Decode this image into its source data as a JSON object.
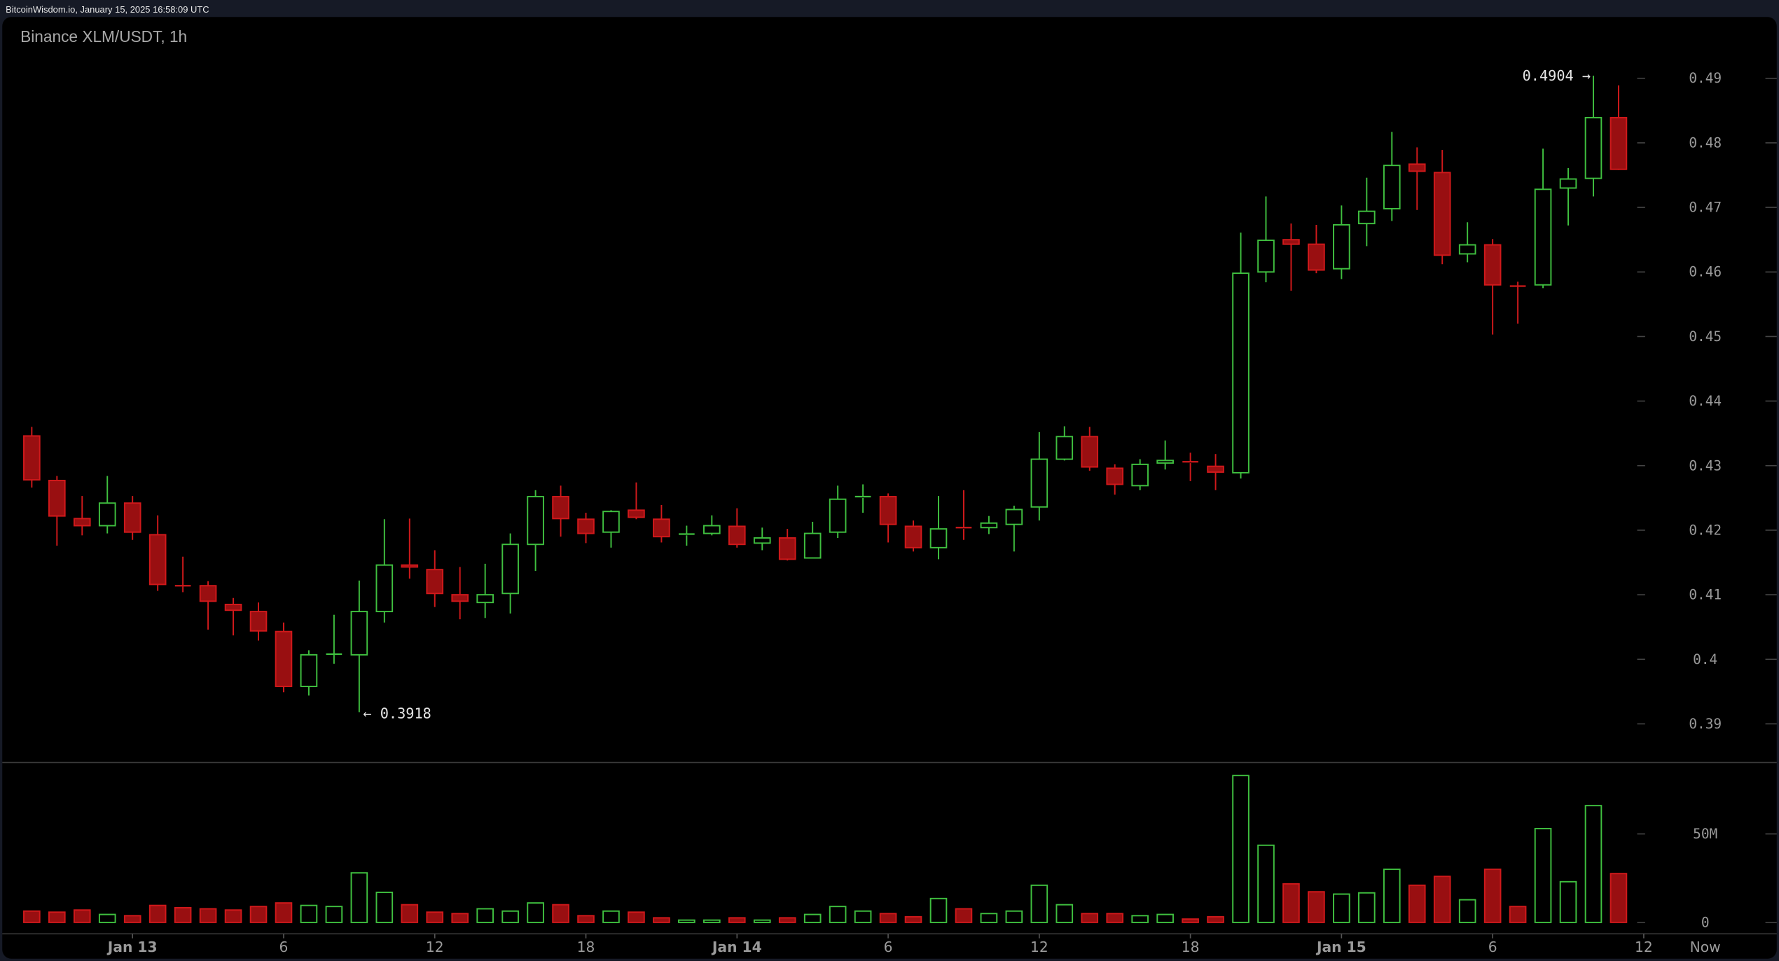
{
  "header": {
    "text": "BitcoinWisdom.io, January 15, 2025 16:58:09 UTC"
  },
  "colors": {
    "up": "#3fbf3f",
    "down_fill": "#990f11",
    "down_stroke": "#d0191b",
    "background": "#000000",
    "axis_text": "#9a9a9a"
  },
  "chart_data": {
    "type": "candlestick",
    "title": "Binance XLM/USDT, 1h",
    "ylim": [
      0.385,
      0.495
    ],
    "y_ticks": [
      "0.49",
      "0.48",
      "0.47",
      "0.46",
      "0.45",
      "0.44",
      "0.43",
      "0.42",
      "0.41",
      "0.4",
      "0.39"
    ],
    "volume_ticks": [
      "50M",
      "0"
    ],
    "x_ticks": [
      "Jan 13",
      "6",
      "12",
      "18",
      "Jan 14",
      "6",
      "12",
      "18",
      "Jan 15",
      "6",
      "12"
    ],
    "x_now_label": "Now",
    "high_annotation": "0.4904 →",
    "low_annotation": "← 0.3918",
    "grid": false,
    "candles": [
      [
        0.4346,
        0.436,
        0.4266,
        0.4278,
        6.4
      ],
      [
        0.4277,
        0.4284,
        0.4176,
        0.4222,
        5.8
      ],
      [
        0.4218,
        0.4253,
        0.4192,
        0.4207,
        7.0
      ],
      [
        0.4207,
        0.4284,
        0.4195,
        0.4242,
        4.5
      ],
      [
        0.4242,
        0.4253,
        0.4185,
        0.4197,
        3.8
      ],
      [
        0.4193,
        0.4223,
        0.4106,
        0.4116,
        9.6
      ],
      [
        0.4114,
        0.4159,
        0.4104,
        0.4113,
        8.3
      ],
      [
        0.4114,
        0.4121,
        0.4046,
        0.409,
        7.7
      ],
      [
        0.4085,
        0.4095,
        0.4037,
        0.4076,
        7.0
      ],
      [
        0.4074,
        0.4088,
        0.4029,
        0.4044,
        9.0
      ],
      [
        0.4043,
        0.4057,
        0.3949,
        0.3958,
        11.0
      ],
      [
        0.3958,
        0.4014,
        0.3944,
        0.4007,
        9.6
      ],
      [
        0.4007,
        0.4069,
        0.3993,
        0.4008,
        9.0
      ],
      [
        0.4007,
        0.4122,
        0.3918,
        0.4074,
        28.0
      ],
      [
        0.4074,
        0.4217,
        0.4057,
        0.4146,
        17.0
      ],
      [
        0.4146,
        0.4218,
        0.4125,
        0.4143,
        10.0
      ],
      [
        0.4139,
        0.4169,
        0.4081,
        0.4102,
        5.8
      ],
      [
        0.41,
        0.4143,
        0.4062,
        0.409,
        5.0
      ],
      [
        0.4088,
        0.4148,
        0.4064,
        0.41,
        7.7
      ],
      [
        0.4102,
        0.4195,
        0.4071,
        0.4178,
        6.4
      ],
      [
        0.4178,
        0.4262,
        0.4137,
        0.4252,
        11.0
      ],
      [
        0.4252,
        0.4269,
        0.419,
        0.4218,
        10.0
      ],
      [
        0.4217,
        0.4227,
        0.418,
        0.4195,
        3.8
      ],
      [
        0.4197,
        0.4231,
        0.4173,
        0.4229,
        6.4
      ],
      [
        0.4231,
        0.4274,
        0.4217,
        0.422,
        5.8
      ],
      [
        0.4217,
        0.4239,
        0.4181,
        0.419,
        2.6
      ],
      [
        0.4192,
        0.4207,
        0.4176,
        0.4194,
        1.3
      ],
      [
        0.4195,
        0.4223,
        0.4192,
        0.4207,
        1.3
      ],
      [
        0.4206,
        0.4234,
        0.4173,
        0.4178,
        2.6
      ],
      [
        0.418,
        0.4204,
        0.4169,
        0.4188,
        1.3
      ],
      [
        0.4188,
        0.4202,
        0.4153,
        0.4155,
        2.6
      ],
      [
        0.4157,
        0.4213,
        0.4157,
        0.4195,
        4.5
      ],
      [
        0.4197,
        0.4269,
        0.4188,
        0.4248,
        9.0
      ],
      [
        0.425,
        0.4271,
        0.4227,
        0.4252,
        6.4
      ],
      [
        0.4252,
        0.4257,
        0.4181,
        0.4209,
        5.0
      ],
      [
        0.4206,
        0.4215,
        0.4167,
        0.4173,
        3.2
      ],
      [
        0.4173,
        0.4253,
        0.4155,
        0.4202,
        13.5
      ],
      [
        0.4204,
        0.4262,
        0.4185,
        0.4202,
        7.7
      ],
      [
        0.4204,
        0.4222,
        0.4194,
        0.4211,
        5.0
      ],
      [
        0.4209,
        0.4238,
        0.4167,
        0.4232,
        6.4
      ],
      [
        0.4236,
        0.4352,
        0.4215,
        0.431,
        21.0
      ],
      [
        0.431,
        0.4361,
        0.4308,
        0.4345,
        10.0
      ],
      [
        0.4345,
        0.436,
        0.4292,
        0.4298,
        5.0
      ],
      [
        0.4296,
        0.4302,
        0.4255,
        0.4271,
        5.0
      ],
      [
        0.4269,
        0.431,
        0.4262,
        0.4302,
        3.8
      ],
      [
        0.4304,
        0.4339,
        0.4294,
        0.4308,
        4.5
      ],
      [
        0.4306,
        0.432,
        0.4276,
        0.4304,
        1.9
      ],
      [
        0.4299,
        0.4318,
        0.4262,
        0.429,
        3.2
      ],
      [
        0.4289,
        0.4661,
        0.428,
        0.4598,
        83.0
      ],
      [
        0.46,
        0.4717,
        0.4584,
        0.4649,
        43.6
      ],
      [
        0.465,
        0.4675,
        0.4571,
        0.4643,
        21.8
      ],
      [
        0.4643,
        0.4673,
        0.4598,
        0.4603,
        17.3
      ],
      [
        0.4605,
        0.4703,
        0.4589,
        0.4673,
        16.0
      ],
      [
        0.4675,
        0.4746,
        0.464,
        0.4694,
        16.7
      ],
      [
        0.4698,
        0.4817,
        0.4679,
        0.4765,
        30.0
      ],
      [
        0.4767,
        0.4793,
        0.4696,
        0.4756,
        21.0
      ],
      [
        0.4754,
        0.4789,
        0.4612,
        0.4626,
        26.0
      ],
      [
        0.4628,
        0.4677,
        0.4615,
        0.4642,
        12.8
      ],
      [
        0.4642,
        0.4651,
        0.4503,
        0.458,
        30.0
      ],
      [
        0.4578,
        0.4585,
        0.452,
        0.4577,
        9.0
      ],
      [
        0.458,
        0.4791,
        0.4575,
        0.4728,
        53.0
      ],
      [
        0.473,
        0.4761,
        0.4672,
        0.4744,
        23.0
      ],
      [
        0.4745,
        0.4904,
        0.4717,
        0.4839,
        66.0
      ],
      [
        0.4839,
        0.4889,
        0.4758,
        0.4759,
        27.6
      ]
    ],
    "candle_fields": [
      "open",
      "high",
      "low",
      "close",
      "volume_millions"
    ]
  }
}
